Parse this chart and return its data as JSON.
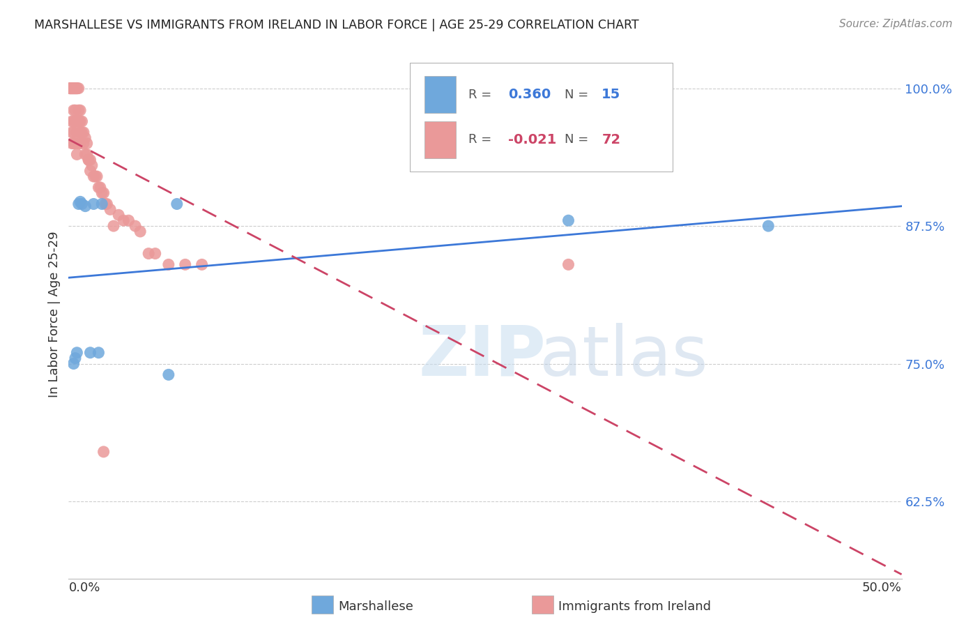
{
  "title": "MARSHALLESE VS IMMIGRANTS FROM IRELAND IN LABOR FORCE | AGE 25-29 CORRELATION CHART",
  "source": "Source: ZipAtlas.com",
  "ylabel": "In Labor Force | Age 25-29",
  "ytick_labels": [
    "100.0%",
    "87.5%",
    "75.0%",
    "62.5%"
  ],
  "ytick_values": [
    1.0,
    0.875,
    0.75,
    0.625
  ],
  "xlim": [
    0.0,
    0.5
  ],
  "ylim": [
    0.555,
    1.035
  ],
  "blue_color": "#6fa8dc",
  "pink_color": "#ea9999",
  "blue_line_color": "#3c78d8",
  "pink_line_color": "#cc4466",
  "watermark_zip": "ZIP",
  "watermark_atlas": "atlas",
  "legend_r_blue": "R = ",
  "legend_r_blue_val": "0.360",
  "legend_n_blue": "N = ",
  "legend_n_blue_val": "15",
  "legend_r_pink": "R = ",
  "legend_r_pink_val": "-0.021",
  "legend_n_pink": "N = ",
  "legend_n_pink_val": "72",
  "marshallese_x": [
    0.003,
    0.004,
    0.005,
    0.006,
    0.007,
    0.008,
    0.01,
    0.013,
    0.015,
    0.018,
    0.02,
    0.06,
    0.065,
    0.3,
    0.42
  ],
  "marshallese_y": [
    0.75,
    0.755,
    0.76,
    0.895,
    0.897,
    0.895,
    0.893,
    0.76,
    0.895,
    0.76,
    0.895,
    0.74,
    0.895,
    0.88,
    0.875
  ],
  "ireland_x": [
    0.001,
    0.001,
    0.001,
    0.002,
    0.002,
    0.002,
    0.002,
    0.002,
    0.002,
    0.003,
    0.003,
    0.003,
    0.003,
    0.003,
    0.003,
    0.003,
    0.004,
    0.004,
    0.004,
    0.004,
    0.004,
    0.004,
    0.005,
    0.005,
    0.005,
    0.005,
    0.005,
    0.005,
    0.006,
    0.006,
    0.006,
    0.006,
    0.007,
    0.007,
    0.007,
    0.007,
    0.008,
    0.008,
    0.009,
    0.009,
    0.01,
    0.01,
    0.011,
    0.011,
    0.012,
    0.012,
    0.013,
    0.013,
    0.014,
    0.015,
    0.016,
    0.017,
    0.018,
    0.019,
    0.02,
    0.021,
    0.022,
    0.023,
    0.025,
    0.027,
    0.03,
    0.033,
    0.036,
    0.04,
    0.043,
    0.048,
    0.052,
    0.06,
    0.07,
    0.08,
    0.3,
    0.021
  ],
  "ireland_y": [
    1.0,
    1.0,
    1.0,
    1.0,
    1.0,
    1.0,
    0.97,
    0.96,
    0.95,
    1.0,
    1.0,
    1.0,
    0.98,
    0.97,
    0.96,
    0.95,
    1.0,
    1.0,
    1.0,
    0.98,
    0.97,
    0.95,
    1.0,
    1.0,
    1.0,
    0.97,
    0.96,
    0.94,
    1.0,
    0.98,
    0.97,
    0.95,
    0.98,
    0.97,
    0.96,
    0.95,
    0.97,
    0.96,
    0.96,
    0.95,
    0.955,
    0.94,
    0.95,
    0.94,
    0.935,
    0.935,
    0.935,
    0.925,
    0.93,
    0.92,
    0.92,
    0.92,
    0.91,
    0.91,
    0.905,
    0.905,
    0.895,
    0.895,
    0.89,
    0.875,
    0.885,
    0.88,
    0.88,
    0.875,
    0.87,
    0.85,
    0.85,
    0.84,
    0.84,
    0.84,
    0.84,
    0.67
  ]
}
